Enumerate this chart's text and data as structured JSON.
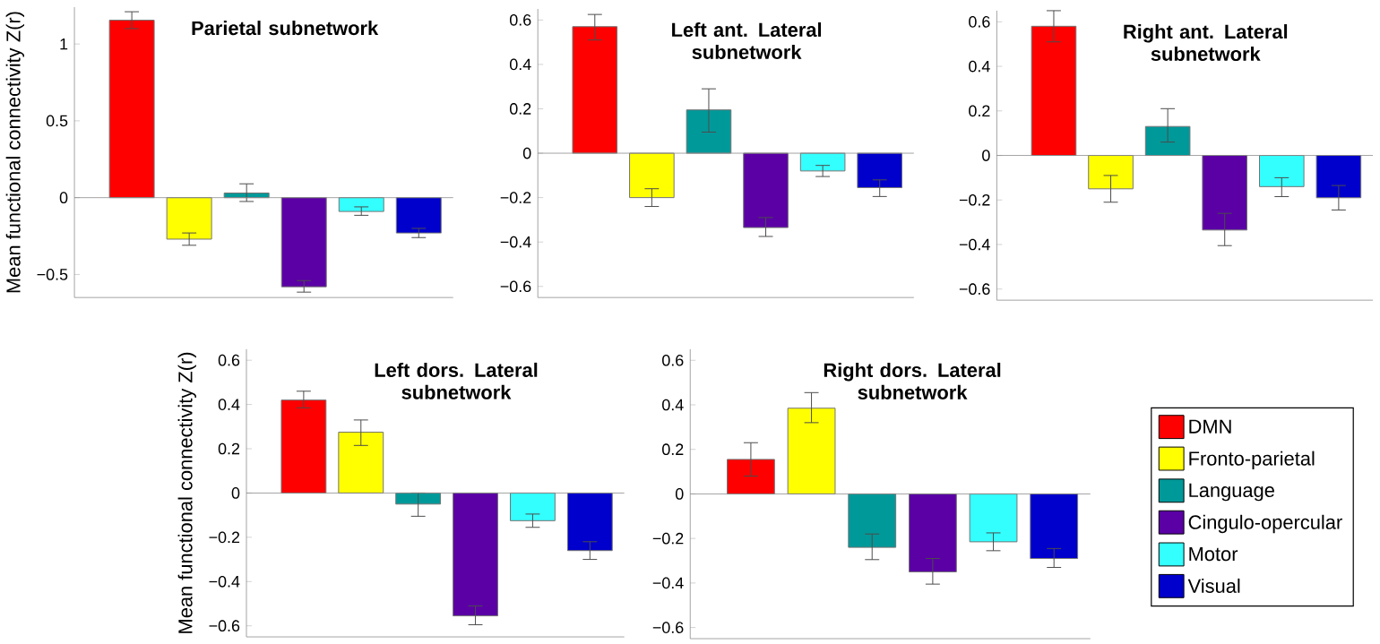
{
  "chart_data": [
    {
      "type": "bar",
      "title": "Parietal subnetwork",
      "ylabel": "Mean functional connectivity Z(r)",
      "categories": [
        null
      ],
      "series": [
        {
          "color": "#ff0000",
          "values": [
            1.155
          ],
          "errors": [
            [
              1.1,
              1.21
            ]
          ]
        },
        {
          "color": "#ffff00",
          "values": [
            -0.27
          ],
          "errors": [
            [
              -0.31,
              -0.23
            ]
          ]
        },
        {
          "color": "#009999",
          "values": [
            0.03
          ],
          "errors": [
            [
              -0.025,
              0.09
            ]
          ]
        },
        {
          "color": "#5a00a5",
          "values": [
            -0.58
          ],
          "errors": [
            [
              -0.615,
              -0.54
            ]
          ]
        },
        {
          "color": "#33ffff",
          "values": [
            -0.09
          ],
          "errors": [
            [
              -0.115,
              -0.06
            ]
          ]
        },
        {
          "color": "#0000cc",
          "values": [
            -0.23
          ],
          "errors": [
            [
              -0.26,
              -0.2
            ]
          ]
        }
      ],
      "ylim": [
        -0.65,
        1.24
      ],
      "yticks": [
        {
          "value": -0.5,
          "label": "−0.5"
        },
        0,
        0.5,
        1
      ],
      "tick_labels": "y"
    },
    {
      "type": "bar",
      "title": "Left ant. Lateral subnetwork",
      "categories": [
        null
      ],
      "series": [
        {
          "color": "#ff0000",
          "values": [
            0.57
          ],
          "errors": [
            [
              0.51,
              0.625
            ]
          ]
        },
        {
          "color": "#ffff00",
          "values": [
            -0.2
          ],
          "errors": [
            [
              -0.24,
              -0.16
            ]
          ]
        },
        {
          "color": "#009999",
          "values": [
            0.195
          ],
          "errors": [
            [
              0.095,
              0.29
            ]
          ]
        },
        {
          "color": "#5a00a5",
          "values": [
            -0.335
          ],
          "errors": [
            [
              -0.375,
              -0.29
            ]
          ]
        },
        {
          "color": "#33ffff",
          "values": [
            -0.08
          ],
          "errors": [
            [
              -0.105,
              -0.055
            ]
          ]
        },
        {
          "color": "#0000cc",
          "values": [
            -0.155
          ],
          "errors": [
            [
              -0.195,
              -0.12
            ]
          ]
        }
      ],
      "ylim": [
        -0.65,
        0.65
      ],
      "yticks": [
        {
          "value": -0.6,
          "label": "−0.6"
        },
        {
          "value": -0.4,
          "label": "−0.4"
        },
        {
          "value": -0.2,
          "label": "−0.2"
        },
        0,
        0.2,
        0.4,
        0.6
      ],
      "tick_labels": "y"
    },
    {
      "type": "bar",
      "title": "Right ant. Lateral subnetwork",
      "categories": [
        null
      ],
      "series": [
        {
          "color": "#ff0000",
          "values": [
            0.58
          ],
          "errors": [
            [
              0.51,
              0.65
            ]
          ]
        },
        {
          "color": "#ffff00",
          "values": [
            -0.15
          ],
          "errors": [
            [
              -0.21,
              -0.09
            ]
          ]
        },
        {
          "color": "#009999",
          "values": [
            0.13
          ],
          "errors": [
            [
              0.06,
              0.21
            ]
          ]
        },
        {
          "color": "#5a00a5",
          "values": [
            -0.335
          ],
          "errors": [
            [
              -0.405,
              -0.26
            ]
          ]
        },
        {
          "color": "#33ffff",
          "values": [
            -0.14
          ],
          "errors": [
            [
              -0.185,
              -0.1
            ]
          ]
        },
        {
          "color": "#0000cc",
          "values": [
            -0.19
          ],
          "errors": [
            [
              -0.245,
              -0.135
            ]
          ]
        }
      ],
      "ylim": [
        -0.65,
        0.65
      ],
      "yticks": [
        {
          "value": -0.6,
          "label": "−0.6"
        },
        {
          "value": -0.4,
          "label": "−0.4"
        },
        {
          "value": -0.2,
          "label": "−0.2"
        },
        0,
        0.2,
        0.4,
        0.6
      ],
      "tick_labels": "y"
    },
    {
      "type": "bar",
      "title": "Left dors. Lateral subnetwork",
      "ylabel": "Mean functional connectivity Z(r)",
      "categories": [
        null
      ],
      "series": [
        {
          "color": "#ff0000",
          "values": [
            0.42
          ],
          "errors": [
            [
              0.385,
              0.46
            ]
          ]
        },
        {
          "color": "#ffff00",
          "values": [
            0.275
          ],
          "errors": [
            [
              0.215,
              0.33
            ]
          ]
        },
        {
          "color": "#009999",
          "values": [
            -0.05
          ],
          "errors": [
            [
              -0.105,
              0.0
            ]
          ]
        },
        {
          "color": "#5a00a5",
          "values": [
            -0.555
          ],
          "errors": [
            [
              -0.595,
              -0.51
            ]
          ]
        },
        {
          "color": "#33ffff",
          "values": [
            -0.125
          ],
          "errors": [
            [
              -0.155,
              -0.095
            ]
          ]
        },
        {
          "color": "#0000cc",
          "values": [
            -0.26
          ],
          "errors": [
            [
              -0.3,
              -0.22
            ]
          ]
        }
      ],
      "ylim": [
        -0.65,
        0.65
      ],
      "yticks": [
        {
          "value": -0.6,
          "label": "−0.6"
        },
        {
          "value": -0.4,
          "label": "−0.4"
        },
        {
          "value": -0.2,
          "label": "−0.2"
        },
        0,
        0.2,
        0.4,
        0.6
      ],
      "tick_labels": "y"
    },
    {
      "type": "bar",
      "title": "Right dors. Lateral subnetwork",
      "categories": [
        null
      ],
      "series": [
        {
          "name": "DMN",
          "color": "#ff0000",
          "values": [
            0.155
          ],
          "errors": [
            [
              0.08,
              0.23
            ]
          ]
        },
        {
          "name": "Fronto-parietal",
          "color": "#ffff00",
          "values": [
            0.385
          ],
          "errors": [
            [
              0.32,
              0.455
            ]
          ]
        },
        {
          "name": "Language",
          "color": "#009999",
          "values": [
            -0.24
          ],
          "errors": [
            [
              -0.295,
              -0.18
            ]
          ]
        },
        {
          "name": "Cingulo-opercular",
          "color": "#5a00a5",
          "values": [
            -0.35
          ],
          "errors": [
            [
              -0.405,
              -0.29
            ]
          ]
        },
        {
          "name": "Motor",
          "color": "#33ffff",
          "values": [
            -0.215
          ],
          "errors": [
            [
              -0.255,
              -0.175
            ]
          ]
        },
        {
          "name": "Visual",
          "color": "#0000cc",
          "values": [
            -0.29
          ],
          "errors": [
            [
              -0.33,
              -0.245
            ]
          ]
        }
      ],
      "ylim": [
        -0.65,
        0.65
      ],
      "yticks": [
        {
          "value": -0.6,
          "label": "−0.6"
        },
        {
          "value": -0.4,
          "label": "−0.4"
        },
        {
          "value": -0.2,
          "label": "−0.2"
        },
        0,
        0.2,
        0.4,
        0.6
      ],
      "tick_labels": "y",
      "legend": "right"
    }
  ]
}
